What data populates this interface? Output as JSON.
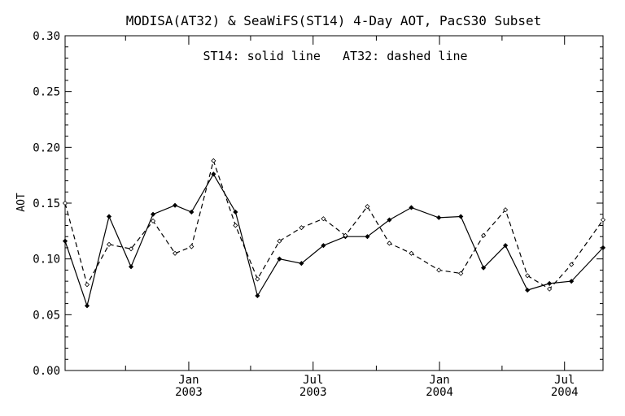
{
  "chart_data": {
    "type": "line",
    "title": "MODISA(AT32) & SeaWiFS(ST14) 4-Day AOT, PacS30 Subset",
    "annotation": "ST14: solid line   AT32: dashed line",
    "ylabel": "AOT",
    "xlabel": "",
    "ylim": [
      0.0,
      0.3
    ],
    "xlim": [
      "2002-07-05",
      "2004-08-26"
    ],
    "grid": false,
    "legend": "none",
    "y_ticks": [
      "0.00",
      "0.05",
      "0.10",
      "0.15",
      "0.20",
      "0.25",
      "0.30"
    ],
    "y_tick_values": [
      0.0,
      0.05,
      0.1,
      0.15,
      0.2,
      0.25,
      0.3
    ],
    "x_major_ticks": [
      {
        "date": "2003-01-01",
        "line1": "Jan",
        "line2": "2003"
      },
      {
        "date": "2003-07-01",
        "line1": "Jul",
        "line2": "2003"
      },
      {
        "date": "2004-01-01",
        "line1": "Jan",
        "line2": "2004"
      },
      {
        "date": "2004-07-01",
        "line1": "Jul",
        "line2": "2004"
      }
    ],
    "x_minor_ticks": [
      "2002-10-01",
      "2003-04-01",
      "2003-10-01",
      "2004-04-01"
    ],
    "series": [
      {
        "name": "ST14",
        "style": "solid",
        "color": "#000000",
        "points": [
          {
            "x": "2002-07-05",
            "y": 0.116
          },
          {
            "x": "2002-08-06",
            "y": 0.058
          },
          {
            "x": "2002-09-07",
            "y": 0.138
          },
          {
            "x": "2002-10-09",
            "y": 0.093
          },
          {
            "x": "2002-11-10",
            "y": 0.14
          },
          {
            "x": "2002-12-12",
            "y": 0.148
          },
          {
            "x": "2003-01-05",
            "y": 0.142
          },
          {
            "x": "2003-02-06",
            "y": 0.176
          },
          {
            "x": "2003-03-10",
            "y": 0.142
          },
          {
            "x": "2003-04-11",
            "y": 0.067
          },
          {
            "x": "2003-05-13",
            "y": 0.1
          },
          {
            "x": "2003-06-14",
            "y": 0.096
          },
          {
            "x": "2003-07-16",
            "y": 0.112
          },
          {
            "x": "2003-08-17",
            "y": 0.12
          },
          {
            "x": "2003-09-18",
            "y": 0.12
          },
          {
            "x": "2003-10-20",
            "y": 0.135
          },
          {
            "x": "2003-11-21",
            "y": 0.146
          },
          {
            "x": "2003-12-31",
            "y": 0.137
          },
          {
            "x": "2004-02-01",
            "y": 0.138
          },
          {
            "x": "2004-03-05",
            "y": 0.092
          },
          {
            "x": "2004-04-06",
            "y": 0.112
          },
          {
            "x": "2004-05-08",
            "y": 0.072
          },
          {
            "x": "2004-06-09",
            "y": 0.078
          },
          {
            "x": "2004-07-11",
            "y": 0.08
          },
          {
            "x": "2004-08-26",
            "y": 0.11
          }
        ]
      },
      {
        "name": "AT32",
        "style": "dashed",
        "color": "#000000",
        "points": [
          {
            "x": "2002-07-05",
            "y": 0.15
          },
          {
            "x": "2002-08-06",
            "y": 0.077
          },
          {
            "x": "2002-09-07",
            "y": 0.113
          },
          {
            "x": "2002-10-09",
            "y": 0.109
          },
          {
            "x": "2002-11-10",
            "y": 0.134
          },
          {
            "x": "2002-12-12",
            "y": 0.105
          },
          {
            "x": "2003-01-05",
            "y": 0.111
          },
          {
            "x": "2003-02-06",
            "y": 0.188
          },
          {
            "x": "2003-03-10",
            "y": 0.13
          },
          {
            "x": "2003-04-11",
            "y": 0.082
          },
          {
            "x": "2003-05-13",
            "y": 0.116
          },
          {
            "x": "2003-06-14",
            "y": 0.128
          },
          {
            "x": "2003-07-16",
            "y": 0.136
          },
          {
            "x": "2003-08-17",
            "y": 0.121
          },
          {
            "x": "2003-09-18",
            "y": 0.147
          },
          {
            "x": "2003-10-20",
            "y": 0.114
          },
          {
            "x": "2003-11-21",
            "y": 0.105
          },
          {
            "x": "2003-12-31",
            "y": 0.09
          },
          {
            "x": "2004-02-01",
            "y": 0.087
          },
          {
            "x": "2004-03-05",
            "y": 0.121
          },
          {
            "x": "2004-04-06",
            "y": 0.144
          },
          {
            "x": "2004-05-08",
            "y": 0.085
          },
          {
            "x": "2004-06-09",
            "y": 0.073
          },
          {
            "x": "2004-07-11",
            "y": 0.095
          },
          {
            "x": "2004-08-26",
            "y": 0.135
          }
        ]
      }
    ]
  }
}
